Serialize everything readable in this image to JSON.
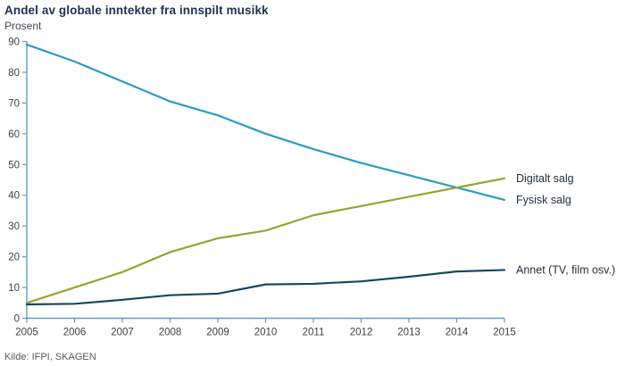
{
  "title": "Andel av globale inntekter fra innspilt musikk",
  "subtitle": "Prosent",
  "source": "Kilde: IFPI, SKAGEN",
  "colors": {
    "title": "#1d3251",
    "axis": "#5b9bd5",
    "tick_label": "#404040",
    "series_label": "#26303d",
    "fysisk": "#2b9bc0",
    "digitalt": "#93a52f",
    "annet": "#17475e"
  },
  "chart_data": {
    "type": "line",
    "title": "Andel av globale inntekter fra innspilt musikk",
    "ylabel": "Prosent",
    "xlabel": "",
    "x": [
      2005,
      2006,
      2007,
      2008,
      2009,
      2010,
      2011,
      2012,
      2013,
      2014,
      2015
    ],
    "xtick_labels": [
      "2005",
      "2006",
      "2007",
      "2008",
      "2009",
      "2010",
      "2011",
      "2012",
      "2013",
      "2014",
      "2015"
    ],
    "ylim": [
      0,
      90
    ],
    "yticks": [
      0,
      10,
      20,
      30,
      40,
      50,
      60,
      70,
      80,
      90
    ],
    "grid": false,
    "legend_position": "right-end-labels",
    "series": [
      {
        "name": "Fysisk salg",
        "color": "#2b9bc0",
        "values": [
          89,
          83.5,
          77,
          70.5,
          66,
          60,
          55,
          50.5,
          46.5,
          42.5,
          38.5
        ]
      },
      {
        "name": "Digitalt salg",
        "color": "#93a52f",
        "values": [
          5,
          10,
          15,
          21.5,
          26,
          28.5,
          33.5,
          36.5,
          39.5,
          42.5,
          45.5
        ]
      },
      {
        "name": "Annet (TV, film osv.)",
        "color": "#17475e",
        "values": [
          4.5,
          4.7,
          6,
          7.5,
          8,
          11,
          11.2,
          12,
          13.5,
          15.2,
          15.7
        ]
      }
    ]
  }
}
